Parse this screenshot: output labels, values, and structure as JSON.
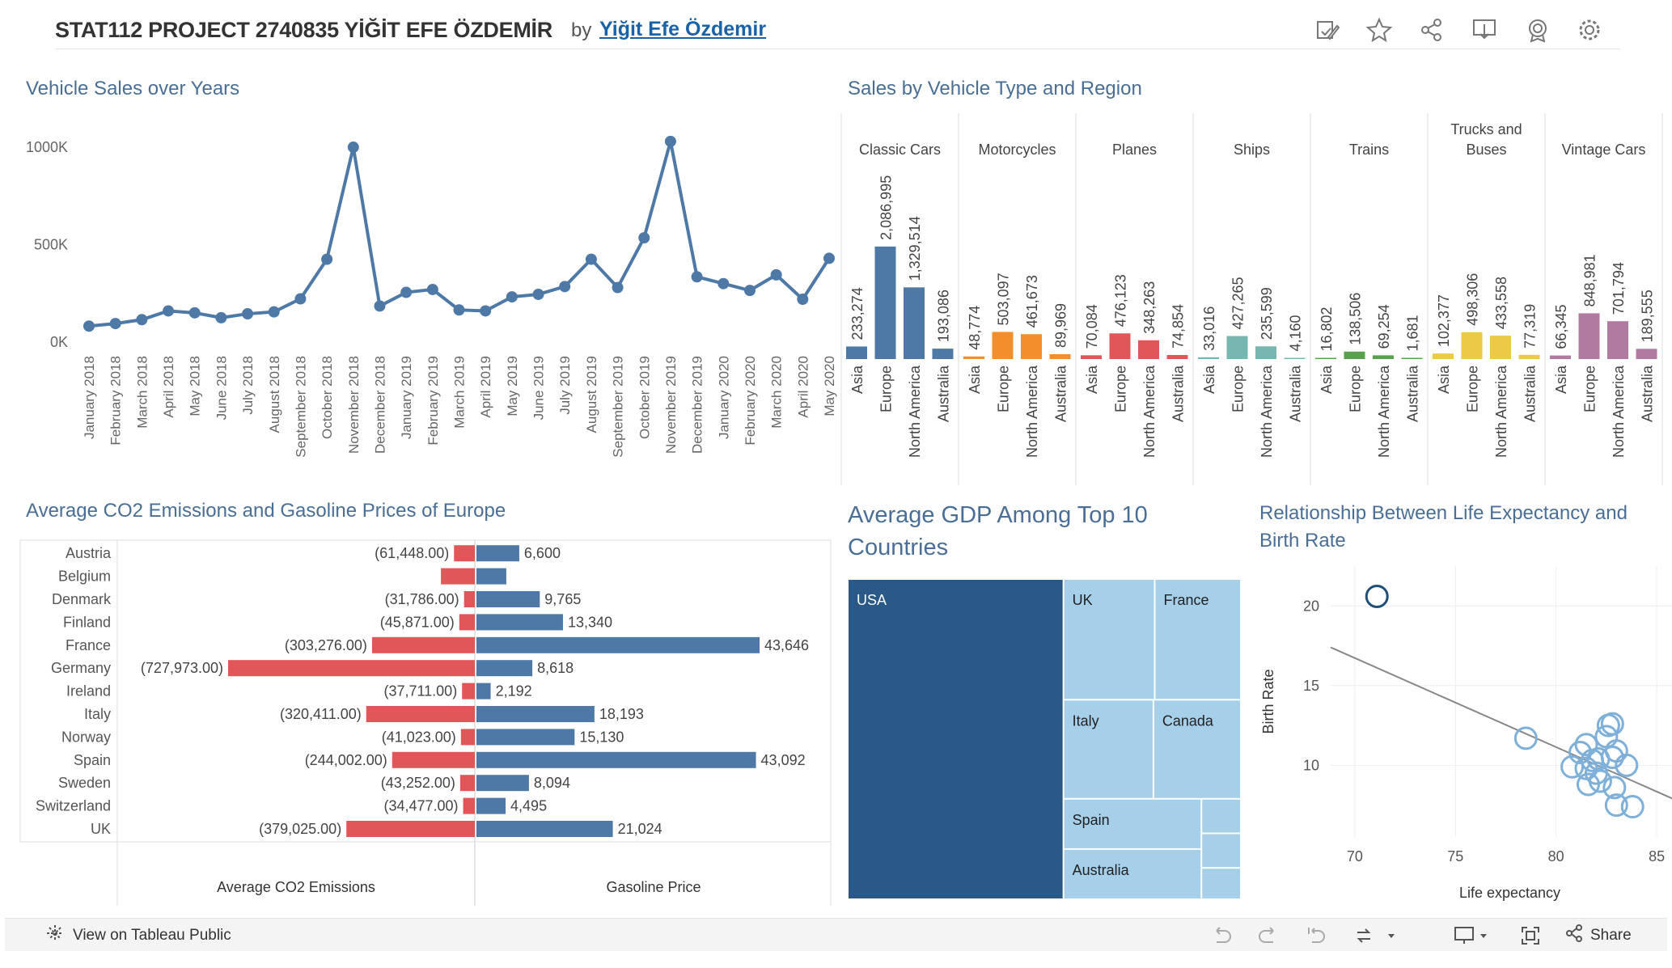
{
  "header": {
    "title": "STAT112 PROJECT 2740835 YİĞİT EFE ÖZDEMİR",
    "by": "by",
    "author": "Yiğit Efe Özdemir",
    "icons": [
      "edit-icon",
      "star-icon",
      "share-nodes-icon",
      "download-icon",
      "badge-icon",
      "gear-icon"
    ]
  },
  "footer": {
    "view_label": "View on Tableau Public",
    "share_label": "Share",
    "icons": [
      "undo-icon",
      "redo-icon",
      "revert-icon",
      "refresh-icon",
      "pause-icon",
      "device-icon",
      "fullscreen-icon",
      "share-icon"
    ]
  },
  "colors": {
    "title_blue": "#4a6e96",
    "line_blue": "#4e79a7",
    "region_colors": [
      "#4e79a7",
      "#f28e2b",
      "#e15759",
      "#76b7b2",
      "#59a14f",
      "#edc948",
      "#b07aa1"
    ],
    "co2_red": "#e15759",
    "gas_blue": "#4e79a7",
    "treemap_dark": "#2b5987",
    "treemap_light": "#a6cfe9",
    "scatter_dark": "#1f4e79",
    "scatter_light": "#7fb0d9"
  },
  "chart_data": [
    {
      "id": "line",
      "type": "line",
      "title": "Vehicle Sales over Years",
      "xlabel": "",
      "ylabel": "",
      "yticks": [
        {
          "value": 0,
          "label": "0K"
        },
        {
          "value": 500000,
          "label": "500K"
        },
        {
          "value": 1000000,
          "label": "1000K"
        }
      ],
      "ylim": [
        0,
        1050000
      ],
      "categories": [
        "January 2018",
        "February 2018",
        "March 2018",
        "April 2018",
        "May 2018",
        "June 2018",
        "July 2018",
        "August 2018",
        "September 2018",
        "October 2018",
        "November 2018",
        "December 2018",
        "January 2019",
        "February 2019",
        "March 2019",
        "April 2019",
        "May 2019",
        "June 2019",
        "July 2019",
        "August 2019",
        "September 2019",
        "October 2019",
        "November 2019",
        "December 2019",
        "January 2020",
        "February 2020",
        "March 2020",
        "April 2020",
        "May 2020"
      ],
      "values": [
        82000,
        95000,
        115000,
        160000,
        150000,
        125000,
        145000,
        155000,
        222000,
        425000,
        1000000,
        185000,
        255000,
        270000,
        165000,
        160000,
        232000,
        245000,
        285000,
        425000,
        280000,
        535000,
        1030000,
        335000,
        300000,
        265000,
        345000,
        220000,
        430000
      ],
      "grid": false
    },
    {
      "id": "region",
      "type": "bar",
      "title": "Sales by Vehicle Type and Region",
      "groups": [
        {
          "name": "Classic Cars",
          "values": [
            233274,
            2086995,
            1329514,
            193086
          ]
        },
        {
          "name": "Motorcycles",
          "values": [
            48774,
            503097,
            461673,
            89969
          ]
        },
        {
          "name": "Planes",
          "values": [
            70084,
            476123,
            348263,
            74854
          ]
        },
        {
          "name": "Ships",
          "values": [
            33016,
            427265,
            235599,
            4160
          ]
        },
        {
          "name": "Trains",
          "values": [
            16802,
            138506,
            69254,
            1681
          ]
        },
        {
          "name": "Trucks and Buses",
          "lines": [
            "Trucks and",
            "Buses"
          ],
          "values": [
            102377,
            498306,
            433558,
            77319
          ]
        },
        {
          "name": "Vintage Cars",
          "values": [
            66345,
            848981,
            701794,
            189555
          ]
        }
      ],
      "labels": [
        [
          "233,274",
          "2,086,995",
          "1,329,514",
          "193,086"
        ],
        [
          "48,774",
          "503,097",
          "461,673",
          "89,969"
        ],
        [
          "70,084",
          "476,123",
          "348,263",
          "74,854"
        ],
        [
          "33,016",
          "427,265",
          "235,599",
          "4,160"
        ],
        [
          "16,802",
          "138,506",
          "69,254",
          "1,681"
        ],
        [
          "102,377",
          "498,306",
          "433,558",
          "77,319"
        ],
        [
          "66,345",
          "848,981",
          "701,794",
          "189,555"
        ]
      ],
      "regions": [
        "Asia",
        "Europe",
        "North America",
        "Australia"
      ],
      "ylim": [
        0,
        2100000
      ]
    },
    {
      "id": "europe",
      "type": "bar",
      "title": "Average CO2 Emissions and Gasoline Prices of Europe",
      "categories": [
        "Austria",
        "Belgium",
        "Denmark",
        "Finland",
        "France",
        "Germany",
        "Ireland",
        "Italy",
        "Norway",
        "Spain",
        "Sweden",
        "Switzerland",
        "UK"
      ],
      "series": [
        {
          "name": "Average CO2 Emissions",
          "values": [
            -61448,
            -100000,
            -31786,
            -45871,
            -303276,
            -727973,
            -37711,
            -320411,
            -41023,
            -244002,
            -43252,
            -34477,
            -379025
          ],
          "labels": [
            "(61,448.00)",
            "",
            "(31,786.00)",
            "(45,871.00)",
            "(303,276.00)",
            "(727,973.00)",
            "(37,711.00)",
            "(320,411.00)",
            "(41,023.00)",
            "(244,002.00)",
            "(43,252.00)",
            "(34,477.00)",
            "(379,025.00)"
          ]
        },
        {
          "name": "Gasoline Price",
          "values": [
            6600,
            4600,
            9765,
            13340,
            43646,
            8618,
            2192,
            18193,
            15130,
            43092,
            8094,
            4495,
            21024
          ],
          "labels": [
            "6,600",
            "",
            "9,765",
            "13,340",
            "43,646",
            "8,618",
            "2,192",
            "18,193",
            "15,130",
            "43,092",
            "8,094",
            "4,495",
            "21,024"
          ]
        }
      ]
    },
    {
      "id": "treemap",
      "type": "treemap",
      "title": "Average GDP Among Top 10 Countries",
      "title_lines": [
        "Average GDP Among Top 10",
        "Countries"
      ],
      "items": [
        {
          "label": "USA",
          "value": 55.8
        },
        {
          "label": "UK",
          "value": 8.9
        },
        {
          "label": "France",
          "value": 8.4
        },
        {
          "label": "Italy",
          "value": 7.2
        },
        {
          "label": "Canada",
          "value": 7.0
        },
        {
          "label": "Spain",
          "value": 5.6
        },
        {
          "label": "Australia",
          "value": 5.6
        },
        {
          "label": "",
          "value": 1.1
        },
        {
          "label": "",
          "value": 1.1
        },
        {
          "label": "",
          "value": 1.0
        }
      ]
    },
    {
      "id": "scatter",
      "type": "scatter",
      "title": "Relationship Between Life Expectancy and Birth Rate",
      "title_lines": [
        "Relationship Between Life Expectancy and",
        "Birth Rate"
      ],
      "xlabel": "Life expectancy",
      "ylabel": "Birth Rate",
      "xlim": [
        68.8,
        85.8
      ],
      "ylim": [
        5.5,
        22.5
      ],
      "xticks": [
        70,
        75,
        80,
        85
      ],
      "yticks": [
        10,
        15,
        20
      ],
      "points": [
        {
          "x": 71.1,
          "y": 20.6
        },
        {
          "x": 78.5,
          "y": 11.7
        },
        {
          "x": 81.2,
          "y": 10.8
        },
        {
          "x": 81.5,
          "y": 11.3
        },
        {
          "x": 82.1,
          "y": 10.4
        },
        {
          "x": 82.6,
          "y": 12.5
        },
        {
          "x": 82.8,
          "y": 12.6
        },
        {
          "x": 82.5,
          "y": 11.8
        },
        {
          "x": 83.0,
          "y": 10.9
        },
        {
          "x": 83.5,
          "y": 10.0
        },
        {
          "x": 81.5,
          "y": 9.8
        },
        {
          "x": 82.0,
          "y": 9.5
        },
        {
          "x": 81.6,
          "y": 8.8
        },
        {
          "x": 82.9,
          "y": 8.6
        },
        {
          "x": 81.8,
          "y": 10.3
        },
        {
          "x": 82.2,
          "y": 9.0
        },
        {
          "x": 83.0,
          "y": 7.5
        },
        {
          "x": 83.8,
          "y": 7.4
        },
        {
          "x": 82.8,
          "y": 10.5
        },
        {
          "x": 80.8,
          "y": 9.9
        }
      ],
      "trend": {
        "x0": 68.8,
        "y0": 17.4,
        "x1": 85.8,
        "y1": 7.9
      }
    }
  ]
}
